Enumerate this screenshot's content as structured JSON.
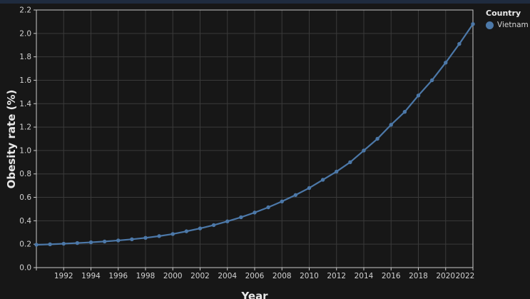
{
  "window": {
    "background_color": "#171717",
    "top_strip_color": "#1f2b3e"
  },
  "style": {
    "spine_color": "#c9c9c9",
    "grid_color": "#3a3a3a",
    "tick_label_color": "#d2d2d2",
    "axis_title_color": "#e8e8e8"
  },
  "legend": {
    "title": "Country",
    "entries": [
      {
        "label": "Vietnam",
        "color": "#4c78a8"
      }
    ],
    "position": "top-right-outside"
  },
  "chart_data": {
    "type": "line",
    "title": "",
    "xlabel": "Year",
    "ylabel": "Obesity rate (%)",
    "xlim": [
      1990,
      2022
    ],
    "ylim": [
      0.0,
      2.2
    ],
    "grid": true,
    "marker": "circle",
    "x": [
      1990,
      1991,
      1992,
      1993,
      1994,
      1995,
      1996,
      1997,
      1998,
      1999,
      2000,
      2001,
      2002,
      2003,
      2004,
      2005,
      2006,
      2007,
      2008,
      2009,
      2010,
      2011,
      2012,
      2013,
      2014,
      2015,
      2016,
      2017,
      2018,
      2019,
      2020,
      2021,
      2022
    ],
    "series": [
      {
        "name": "Vietnam",
        "color": "#4c78a8",
        "values": [
          0.195,
          0.199,
          0.204,
          0.21,
          0.216,
          0.223,
          0.232,
          0.242,
          0.254,
          0.269,
          0.287,
          0.31,
          0.335,
          0.363,
          0.395,
          0.43,
          0.47,
          0.515,
          0.565,
          0.62,
          0.68,
          0.75,
          0.82,
          0.9,
          1.0,
          1.1,
          1.22,
          1.33,
          1.47,
          1.6,
          1.75,
          1.91,
          2.08
        ]
      }
    ],
    "xticks": {
      "values": [
        1990,
        1992,
        1994,
        1996,
        1998,
        2000,
        2002,
        2004,
        2006,
        2008,
        2010,
        2012,
        2014,
        2016,
        2018,
        2020,
        2022
      ],
      "labels": [
        "",
        "1992",
        "1994",
        "1996",
        "1998",
        "2000",
        "2002",
        "2004",
        "2006",
        "2008",
        "2010",
        "2012",
        "2014",
        "2016",
        "2018",
        "2020",
        "2022"
      ]
    },
    "yticks": {
      "values": [
        0.0,
        0.2,
        0.4,
        0.6,
        0.8,
        1.0,
        1.2,
        1.4,
        1.6,
        1.8,
        2.0,
        2.2
      ],
      "labels": [
        "0.0",
        "0.2",
        "0.4",
        "0.6",
        "0.8",
        "1.0",
        "1.2",
        "1.4",
        "1.6",
        "1.8",
        "2.0",
        "2.2"
      ]
    }
  }
}
